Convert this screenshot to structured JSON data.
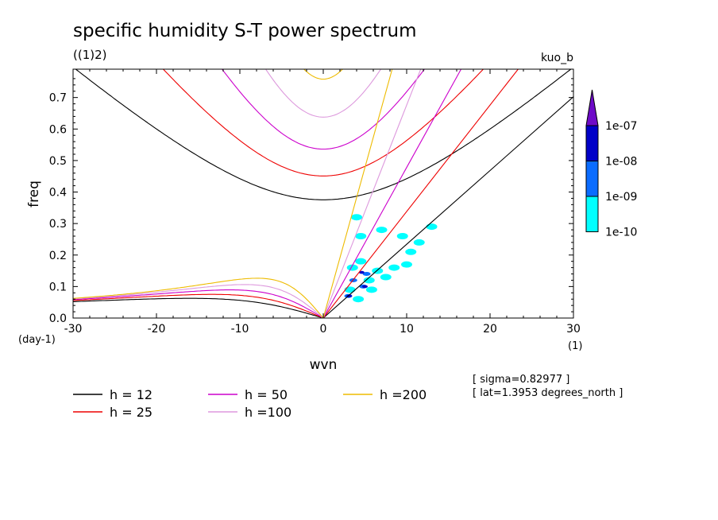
{
  "chart_data": {
    "type": "contour",
    "title": "specific humidity S-T power spectrum",
    "subtitle": "((1)2)",
    "run_label": "kuo_b",
    "xlabel": "wvn",
    "x_unit": "(1)",
    "ylabel": "freq",
    "y_unit": "(day-1)",
    "xlim": [
      -30,
      30
    ],
    "ylim": [
      0,
      0.79
    ],
    "x_ticks": [
      -30,
      -20,
      -10,
      0,
      10,
      20,
      30
    ],
    "x_tick_labels": [
      "-30",
      "-20",
      "-10",
      "0",
      "10",
      "20",
      "30"
    ],
    "y_ticks": [
      0.0,
      0.1,
      0.2,
      0.3,
      0.4,
      0.5,
      0.6,
      0.7
    ],
    "y_tick_labels": [
      "0.0",
      "0.1",
      "0.2",
      "0.3",
      "0.4",
      "0.5",
      "0.6",
      "0.7"
    ],
    "grid": false,
    "colorbar": {
      "levels": [
        "1e-10",
        "1e-09",
        "1e-08",
        "1e-07"
      ],
      "colors": [
        "#00ffff",
        "#0a6cff",
        "#0000c8",
        "#6e0ac8"
      ]
    },
    "dispersion_curves": [
      {
        "name": "h = 12",
        "equivalent_depth": 12,
        "color": "#000000"
      },
      {
        "name": "h = 25",
        "equivalent_depth": 25,
        "color": "#ee0000"
      },
      {
        "name": "h = 50",
        "equivalent_depth": 50,
        "color": "#cc00cc"
      },
      {
        "name": "h =100",
        "equivalent_depth": 100,
        "color": "#dd99dd"
      },
      {
        "name": "h =200",
        "equivalent_depth": 200,
        "color": "#eebb00"
      }
    ],
    "spectral_blobs": [
      {
        "x": 3.5,
        "y": 0.16,
        "level": 0
      },
      {
        "x": 4.5,
        "y": 0.18,
        "level": 0
      },
      {
        "x": 6.5,
        "y": 0.15,
        "level": 0
      },
      {
        "x": 8.5,
        "y": 0.16,
        "level": 0
      },
      {
        "x": 5.5,
        "y": 0.12,
        "level": 0
      },
      {
        "x": 3.2,
        "y": 0.09,
        "level": 0
      },
      {
        "x": 5.8,
        "y": 0.09,
        "level": 0
      },
      {
        "x": 4.2,
        "y": 0.06,
        "level": 0
      },
      {
        "x": 7.5,
        "y": 0.13,
        "level": 0
      },
      {
        "x": 10.0,
        "y": 0.17,
        "level": 0
      },
      {
        "x": 4.5,
        "y": 0.26,
        "level": 0
      },
      {
        "x": 4.0,
        "y": 0.32,
        "level": 0
      },
      {
        "x": 7.0,
        "y": 0.28,
        "level": 0
      },
      {
        "x": 9.5,
        "y": 0.26,
        "level": 0
      },
      {
        "x": 11.5,
        "y": 0.24,
        "level": 0
      },
      {
        "x": 13.0,
        "y": 0.29,
        "level": 0
      },
      {
        "x": 10.5,
        "y": 0.21,
        "level": 0
      },
      {
        "x": 3.0,
        "y": 0.07,
        "level": 1
      },
      {
        "x": 4.8,
        "y": 0.1,
        "level": 1
      },
      {
        "x": 3.6,
        "y": 0.12,
        "level": 1
      },
      {
        "x": 5.2,
        "y": 0.14,
        "level": 1
      },
      {
        "x": 3.1,
        "y": 0.07,
        "level": 2
      },
      {
        "x": 5.0,
        "y": 0.1,
        "level": 2
      },
      {
        "x": 4.6,
        "y": 0.145,
        "level": 2
      }
    ],
    "info_lines": [
      "[ sigma=0.82977 ]",
      "[ lat=1.3953 degrees_north ]"
    ]
  }
}
